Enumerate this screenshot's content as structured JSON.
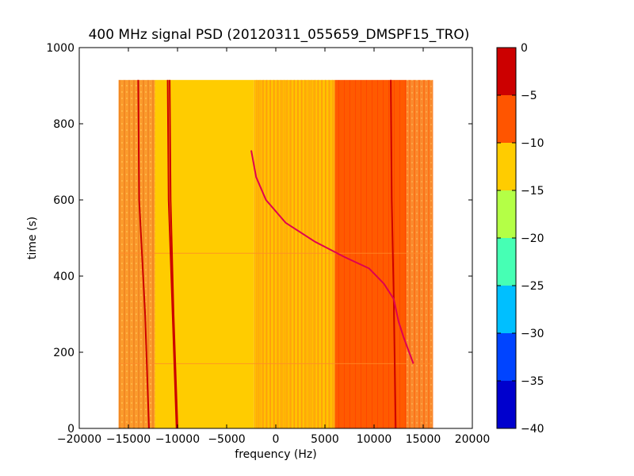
{
  "chart_data": {
    "type": "heatmap",
    "title": "400 MHz signal PSD (20120311_055659_DMSPF15_TRO)",
    "xlabel": "frequency (Hz)",
    "ylabel": "time (s)",
    "xlim": [
      -20000,
      20000
    ],
    "ylim": [
      0,
      1000
    ],
    "xticks": [
      -20000,
      -15000,
      -10000,
      -5000,
      0,
      5000,
      10000,
      15000,
      20000
    ],
    "xtick_labels": [
      "−20000",
      "−15000",
      "−10000",
      "−5000",
      "0",
      "5000",
      "10000",
      "15000",
      "20000"
    ],
    "yticks": [
      0,
      200,
      400,
      600,
      800,
      1000
    ],
    "ytick_labels": [
      "0",
      "200",
      "400",
      "600",
      "800",
      "1000"
    ],
    "data_extent": {
      "freq": [
        -16000,
        16000
      ],
      "time": [
        0,
        915
      ]
    },
    "colorbar": {
      "levels": [
        -40,
        -35,
        -30,
        -25,
        -20,
        -15,
        -10,
        -5,
        0
      ],
      "tick_labels": [
        "−40",
        "−35",
        "−30",
        "−25",
        "−20",
        "−15",
        "−10",
        "−5",
        "0"
      ],
      "colors": [
        "#0000cd",
        "#0044ff",
        "#00bfff",
        "#46ffb4",
        "#b4ff46",
        "#ffcc00",
        "#ff5500",
        "#cc0000"
      ]
    },
    "regions": [
      {
        "freq": [
          -16000,
          -12300
        ],
        "level_band": [
          -10,
          -5
        ],
        "color": "#f99b2a",
        "texture": "vertical-stripes"
      },
      {
        "freq": [
          -12300,
          -2200
        ],
        "level_band": [
          -15,
          -10
        ],
        "color": "#ffcc00"
      },
      {
        "freq": [
          -2200,
          6000
        ],
        "level_band": [
          -15,
          -5
        ],
        "color": "#ffb700",
        "texture": "mixed-stripes"
      },
      {
        "freq": [
          6000,
          13300
        ],
        "level_band": [
          -10,
          -5
        ],
        "color": "#ff5500"
      },
      {
        "freq": [
          13300,
          16000
        ],
        "level_band": [
          -10,
          -5
        ],
        "color": "#f98a2e",
        "texture": "vertical-stripes"
      }
    ],
    "traces": [
      {
        "name": "",
        "color": "#cc0000",
        "points": [
          [
            -12900,
            0
          ],
          [
            -13300,
            300
          ],
          [
            -13900,
            600
          ],
          [
            -14000,
            915
          ]
        ]
      },
      {
        "name": "",
        "color": "#cc0000",
        "points": [
          [
            -10000,
            0
          ],
          [
            -10400,
            300
          ],
          [
            -10700,
            600
          ],
          [
            -10800,
            915
          ]
        ]
      },
      {
        "name": "",
        "color": "#cc0000",
        "points": [
          [
            -10100,
            0
          ],
          [
            -10500,
            300
          ],
          [
            -10900,
            600
          ],
          [
            -11000,
            915
          ]
        ]
      },
      {
        "name": "",
        "color": "#cc0000",
        "points": [
          [
            12200,
            0
          ],
          [
            12000,
            350
          ],
          [
            11800,
            600
          ],
          [
            11700,
            915
          ]
        ]
      },
      {
        "name": "",
        "color": "#e00050",
        "points": [
          [
            -2500,
            730
          ],
          [
            -2000,
            660
          ],
          [
            -1000,
            600
          ],
          [
            1000,
            540
          ],
          [
            4000,
            490
          ],
          [
            7000,
            450
          ],
          [
            9500,
            420
          ],
          [
            11000,
            380
          ],
          [
            12000,
            340
          ],
          [
            12500,
            280
          ],
          [
            13000,
            240
          ],
          [
            14000,
            170
          ]
        ]
      }
    ],
    "horizontal_artifacts": [
      {
        "time": 460,
        "color": "#ff8a2a"
      },
      {
        "time": 170,
        "color": "#ff8a2a"
      }
    ]
  }
}
